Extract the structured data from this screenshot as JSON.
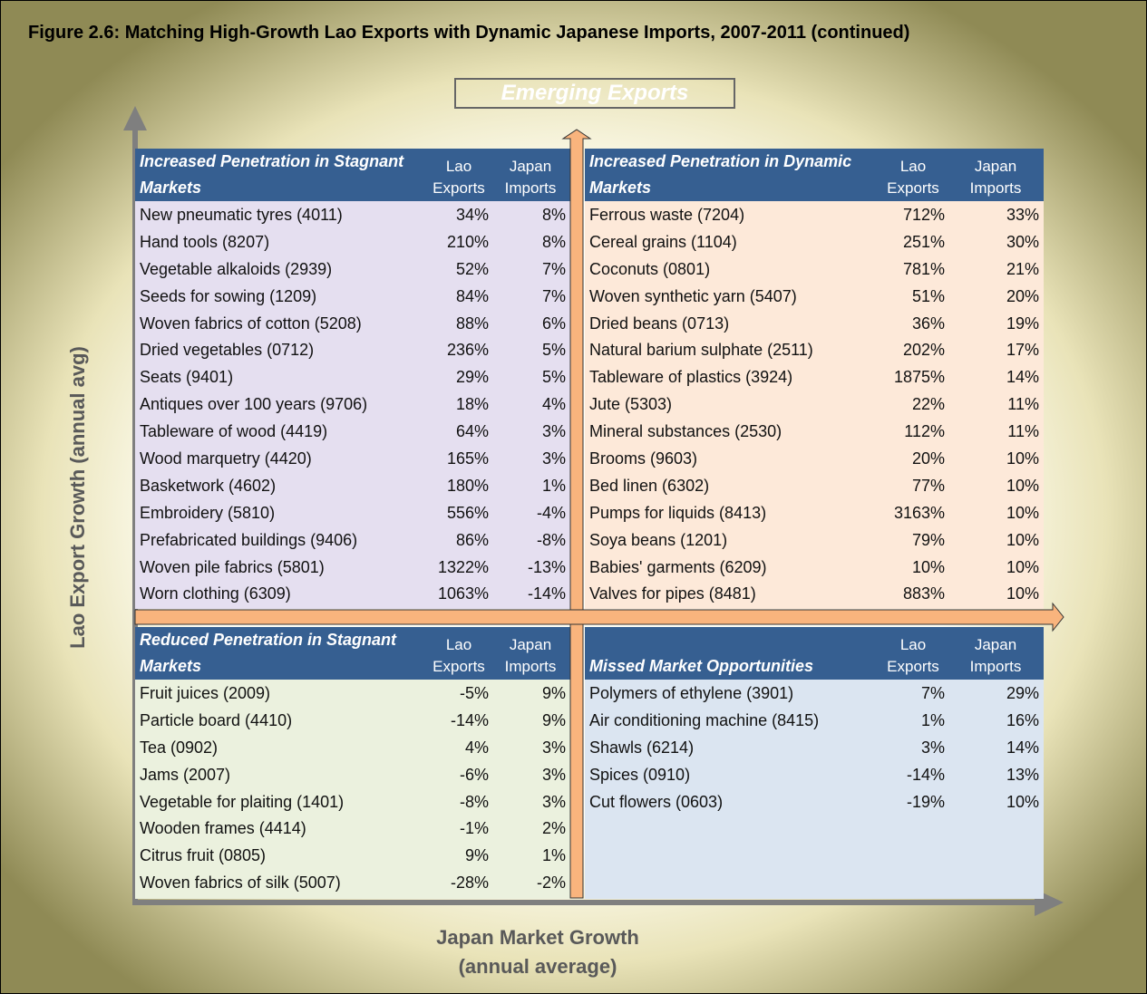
{
  "title": "Figure 2.6: Matching High-Growth Lao Exports with Dynamic Japanese Imports, 2007-2011 (continued)",
  "banner": "Emerging Exports",
  "y_axis_label": "Lao Export Growth (annual avg)",
  "x_axis_label": [
    "Japan Market Growth",
    "(annual average)"
  ],
  "quadrants": [
    {
      "title": "Increased Penetration in Stagnant Markets",
      "columns": [
        "Lao Exports",
        "Japan Imports"
      ],
      "rows": [
        [
          "New pneumatic tyres (4011)",
          "34%",
          "8%"
        ],
        [
          "Hand tools (8207)",
          "210%",
          "8%"
        ],
        [
          "Vegetable alkaloids (2939)",
          "52%",
          "7%"
        ],
        [
          "Seeds for sowing (1209)",
          "84%",
          "7%"
        ],
        [
          "Woven fabrics of cotton (5208)",
          "88%",
          "6%"
        ],
        [
          "Dried vegetables (0712)",
          "236%",
          "5%"
        ],
        [
          "Seats (9401)",
          "29%",
          "5%"
        ],
        [
          "Antiques over 100 years (9706)",
          "18%",
          "4%"
        ],
        [
          "Tableware of wood (4419)",
          "64%",
          "3%"
        ],
        [
          "Wood marquetry (4420)",
          "165%",
          "3%"
        ],
        [
          "Basketwork (4602)",
          "180%",
          "1%"
        ],
        [
          "Embroidery (5810)",
          "556%",
          "-4%"
        ],
        [
          "Prefabricated buildings (9406)",
          "86%",
          "-8%"
        ],
        [
          "Woven pile fabrics (5801)",
          "1322%",
          "-13%"
        ],
        [
          "Worn clothing (6309)",
          "1063%",
          "-14%"
        ]
      ]
    },
    {
      "title": "Increased Penetration in Dynamic Markets",
      "columns": [
        "Lao Exports",
        "Japan Imports"
      ],
      "rows": [
        [
          "Ferrous waste (7204)",
          "712%",
          "33%"
        ],
        [
          "Cereal grains (1104)",
          "251%",
          "30%"
        ],
        [
          "Coconuts (0801)",
          "781%",
          "21%"
        ],
        [
          "Woven synthetic yarn (5407)",
          "51%",
          "20%"
        ],
        [
          "Dried beans (0713)",
          "36%",
          "19%"
        ],
        [
          "Natural barium sulphate (2511)",
          "202%",
          "17%"
        ],
        [
          "Tableware of plastics (3924)",
          "1875%",
          "14%"
        ],
        [
          "Jute (5303)",
          "22%",
          "11%"
        ],
        [
          "Mineral substances (2530)",
          "112%",
          "11%"
        ],
        [
          "Brooms (9603)",
          "20%",
          "10%"
        ],
        [
          "Bed linen (6302)",
          "77%",
          "10%"
        ],
        [
          "Pumps for liquids (8413)",
          "3163%",
          "10%"
        ],
        [
          "Soya beans (1201)",
          "79%",
          "10%"
        ],
        [
          "Babies' garments (6209)",
          "10%",
          "10%"
        ],
        [
          "Valves for pipes (8481)",
          "883%",
          "10%"
        ]
      ]
    },
    {
      "title": "Reduced Penetration in Stagnant Markets",
      "columns": [
        "Lao Exports",
        "Japan Imports"
      ],
      "rows": [
        [
          "Fruit juices (2009)",
          "-5%",
          "9%"
        ],
        [
          "Particle board (4410)",
          "-14%",
          "9%"
        ],
        [
          "Tea (0902)",
          "4%",
          "3%"
        ],
        [
          "Jams (2007)",
          "-6%",
          "3%"
        ],
        [
          "Vegetable for plaiting  (1401)",
          "-8%",
          "3%"
        ],
        [
          "Wooden frames (4414)",
          "-1%",
          "2%"
        ],
        [
          "Citrus fruit (0805)",
          "9%",
          "1%"
        ],
        [
          "Woven fabrics of silk (5007)",
          "-28%",
          "-2%"
        ]
      ]
    },
    {
      "title": "Missed Market Opportunities",
      "columns": [
        "Lao Exports",
        "Japan Imports"
      ],
      "rows": [
        [
          "Polymers of ethylene (3901)",
          "7%",
          "29%"
        ],
        [
          "Air conditioning machine (8415)",
          "1%",
          "16%"
        ],
        [
          "Shawls (6214)",
          "3%",
          "14%"
        ],
        [
          "Spices (0910)",
          "-14%",
          "13%"
        ],
        [
          "Cut flowers (0603)",
          "-19%",
          "10%"
        ]
      ]
    }
  ]
}
